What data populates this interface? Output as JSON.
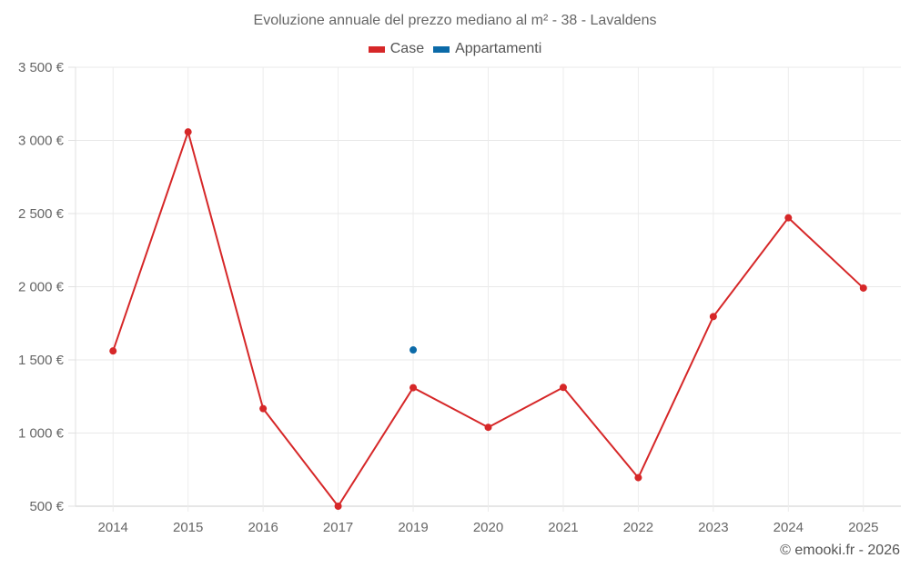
{
  "chart": {
    "title": "Evoluzione annuale del prezzo mediano al m² - 38 - Lavaldens",
    "credit": "© emooki.fr - 2026"
  },
  "legend": [
    {
      "label": "Case",
      "color": "#d62728"
    },
    {
      "label": "Appartamenti",
      "color": "#0b6aa8"
    }
  ],
  "chart_data": {
    "type": "line",
    "title": "Evoluzione annuale del prezzo mediano al m² - 38 - Lavaldens",
    "xlabel": "",
    "ylabel": "",
    "categories": [
      "2014",
      "2015",
      "2016",
      "2017",
      "2019",
      "2020",
      "2021",
      "2022",
      "2023",
      "2024",
      "2025"
    ],
    "series": [
      {
        "name": "Case",
        "color": "#d62728",
        "values": [
          1561,
          3058,
          1167,
          500,
          1310,
          1039,
          1312,
          695,
          1796,
          2471,
          1991
        ]
      },
      {
        "name": "Appartamenti",
        "color": "#0b6aa8",
        "values": [
          null,
          null,
          null,
          null,
          1568,
          null,
          null,
          null,
          null,
          null,
          null
        ]
      }
    ],
    "yticks": [
      500,
      1000,
      1500,
      2000,
      2500,
      3000,
      3500
    ],
    "ytick_labels": [
      "500 €",
      "1 000 €",
      "1 500 €",
      "2 000 €",
      "2 500 €",
      "3 000 €",
      "3 500 €"
    ],
    "ylim": [
      500,
      3500
    ],
    "grid": true,
    "legend_position": "top"
  }
}
